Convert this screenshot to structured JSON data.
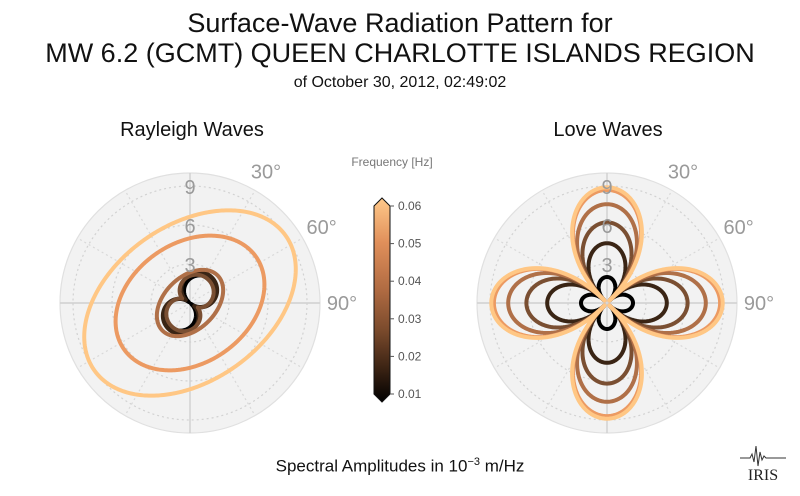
{
  "title": {
    "line1": "Surface-Wave Radiation Pattern for",
    "line2": "MW 6.2 (GCMT) QUEEN CHARLOTTE ISLANDS REGION",
    "line3": "of October 30, 2012, 02:49:02"
  },
  "footer": {
    "prefix": "Spectral Amplitudes in 10",
    "exponent": "−3",
    "unit": " m/Hz"
  },
  "logo_text": "IRIS",
  "colorbar": {
    "label": "Frequency [Hz]",
    "ticks": [
      "0.06",
      "0.05",
      "0.04",
      "0.03",
      "0.02",
      "0.01"
    ],
    "min": 0.01,
    "max": 0.06,
    "colors": [
      "#000000",
      "#3d2414",
      "#7a4a2c",
      "#b06b42",
      "#e08f5a",
      "#ffb56f",
      "#ffc98a"
    ]
  },
  "chart_data": [
    {
      "type": "polar",
      "title": "Rayleigh Waves",
      "r_ticks": [
        "3",
        "6",
        "9"
      ],
      "angle_ticks": [
        "30°",
        "60°",
        "90°"
      ],
      "r_max": 10,
      "series": [
        {
          "frequency": 0.01,
          "color": "#000000",
          "shape": "two-lobe",
          "a": 2.4,
          "orient_deg": 40,
          "min_frac": 0.05
        },
        {
          "frequency": 0.02,
          "color": "#3a2515",
          "shape": "two-lobe",
          "a": 2.6,
          "orient_deg": 35,
          "min_frac": 0.15
        },
        {
          "frequency": 0.03,
          "color": "#7a4f32",
          "shape": "two-lobe",
          "a": 2.3,
          "orient_deg": 30,
          "min_frac": 0.3
        },
        {
          "frequency": 0.04,
          "color": "#b07048",
          "shape": "ellipse",
          "a": 3.0,
          "b": 2.0,
          "orient_deg": 45
        },
        {
          "frequency": 0.05,
          "color": "#ec9a62",
          "shape": "ellipse",
          "a": 6.2,
          "b": 4.6,
          "orient_deg": 55
        },
        {
          "frequency": 0.06,
          "color": "#ffc785",
          "shape": "ellipse",
          "a": 9.0,
          "b": 6.0,
          "orient_deg": 55
        }
      ]
    },
    {
      "type": "polar",
      "title": "Love Waves",
      "r_ticks": [
        "3",
        "6",
        "9"
      ],
      "angle_ticks": [
        "30°",
        "60°",
        "90°"
      ],
      "r_max": 10,
      "series": [
        {
          "frequency": 0.01,
          "color": "#000000",
          "shape": "four-lobe",
          "a": 2.0,
          "min_frac": 0.15
        },
        {
          "frequency": 0.02,
          "color": "#3a2515",
          "shape": "four-lobe",
          "a": 4.6,
          "min_frac": 0.08
        },
        {
          "frequency": 0.03,
          "color": "#7a4f32",
          "shape": "four-lobe",
          "a": 6.2,
          "min_frac": 0.05
        },
        {
          "frequency": 0.04,
          "color": "#b07048",
          "shape": "four-lobe",
          "a": 7.6,
          "min_frac": 0.04
        },
        {
          "frequency": 0.05,
          "color": "#ec9a62",
          "shape": "four-lobe",
          "a": 8.7,
          "min_frac": 0.03
        },
        {
          "frequency": 0.06,
          "color": "#ffc785",
          "shape": "four-lobe",
          "a": 8.9,
          "min_frac": 0.03
        }
      ]
    }
  ]
}
